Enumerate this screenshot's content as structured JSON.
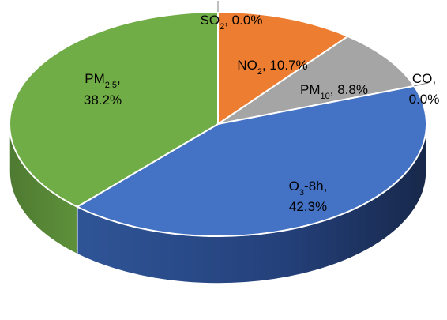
{
  "chart_data": {
    "type": "pie",
    "style": "3d",
    "title": "",
    "legend": "none",
    "slices": [
      {
        "name": "SO",
        "sub": "2",
        "value": 0.0,
        "label": "0.0%",
        "color": "#7f7f7f"
      },
      {
        "name": "NO",
        "sub": "2",
        "value": 10.7,
        "label": "10.7%",
        "color": "#ed7d31"
      },
      {
        "name": "PM",
        "sub": "10",
        "value": 8.8,
        "label": "8.8%",
        "color": "#a5a5a5"
      },
      {
        "name": "CO",
        "sub": "",
        "value": 0.0,
        "label": "0.0%",
        "color": "#ffc000"
      },
      {
        "name": "O",
        "sub": "3",
        "suffix": "-8h",
        "value": 42.3,
        "label": "42.3%",
        "color": "#4472c4"
      },
      {
        "name": "PM",
        "sub": "2.5",
        "value": 38.2,
        "label": "38.2%",
        "color": "#70ad47"
      }
    ]
  }
}
